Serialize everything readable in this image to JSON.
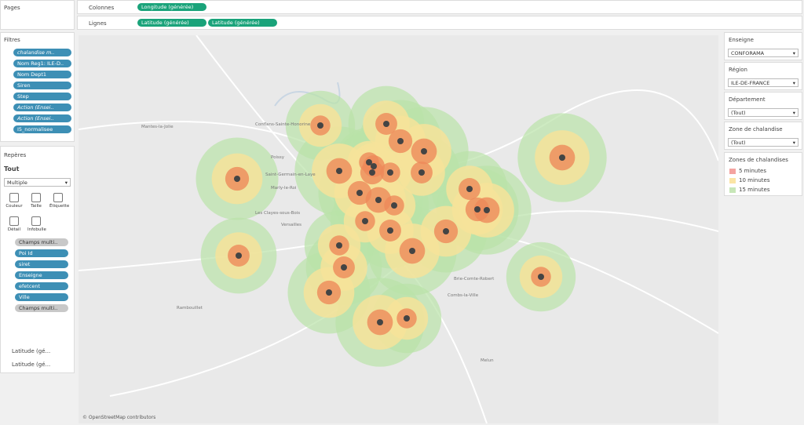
{
  "pages": {
    "title": "Pages"
  },
  "shelves": {
    "columns": {
      "label": "Colonnes",
      "pills": [
        "Longitude (générée)"
      ]
    },
    "rows": {
      "label": "Lignes",
      "pills": [
        "Latitude (générée)",
        "Latitude (générée)"
      ]
    }
  },
  "filters": {
    "title": "Filtres",
    "items": [
      "chalandise m..",
      "Nom Reg1: ILE-D..",
      "Nom Dept1",
      "Siren",
      "Step",
      "Action (Ensei..",
      "Action (Ensei..",
      "I5_normalisee"
    ]
  },
  "marks": {
    "title": "Repères",
    "all": "Tout",
    "type": "Multiple",
    "buttons": [
      "Couleur",
      "Taille",
      "Étiquette",
      "Détail",
      "Infobulle"
    ],
    "fields": [
      "Champs multi..",
      "Poi Id",
      "siret",
      "Enseigne",
      "efetcent",
      "Ville",
      "Champs multi.."
    ],
    "sections": [
      "Latitude (gé...",
      "Latitude (gé..."
    ]
  },
  "quick_filters": [
    {
      "label": "Enseigne",
      "value": "CONFORAMA"
    },
    {
      "label": "Région",
      "value": "ILE-DE-FRANCE"
    },
    {
      "label": "Département",
      "value": "(Tout)"
    },
    {
      "label": "Zone de chalandise",
      "value": "(Tout)"
    }
  ],
  "legend": {
    "title": "Zones de chalandises",
    "items": [
      {
        "label": "5 minutes",
        "color": "#f4a3a0"
      },
      {
        "label": "10 minutes",
        "color": "#fbe5a5"
      },
      {
        "label": "15 minutes",
        "color": "#c7e6b8"
      }
    ]
  },
  "map": {
    "places": [
      "Mantes-la-Jolie",
      "Conflans-Sainte-Honorine",
      "Poissy",
      "Saint-Germain-en-Laye",
      "Marly-le-Roi",
      "Les Clayes-sous-Bois",
      "Versailles",
      "Rambouillet",
      "Brie-Comte-Robert",
      "Combs-la-Ville",
      "Melun"
    ],
    "attribution": "© OpenStreetMap contributors"
  }
}
